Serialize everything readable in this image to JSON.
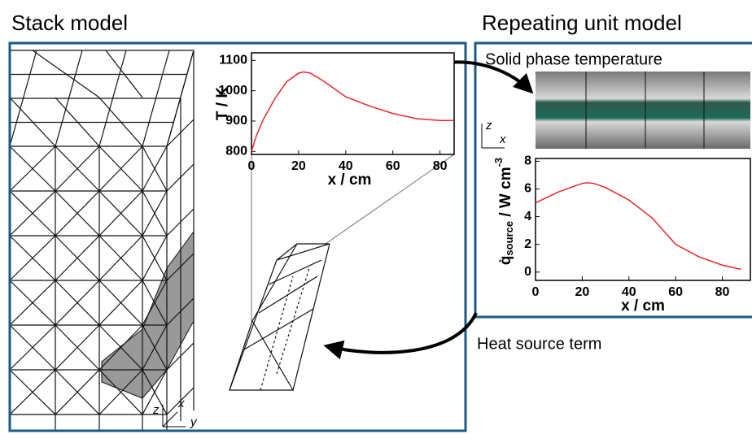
{
  "stack_title": "Stack model",
  "unit_title": "Repeating unit model",
  "solid_phase_label": "Solid phase temperature",
  "heat_source_label": "Heat source term",
  "stack_axes": {
    "z": "z",
    "x": "x",
    "y": "y"
  },
  "unit_axes": {
    "z": "z",
    "x": "x"
  },
  "chart_data": [
    {
      "type": "line",
      "xlabel": "x / cm",
      "ylabel": "T / K",
      "x": [
        0,
        2,
        5,
        10,
        15,
        20,
        22,
        25,
        30,
        40,
        50,
        60,
        70,
        80,
        86
      ],
      "values": [
        800,
        850,
        905,
        975,
        1030,
        1058,
        1062,
        1058,
        1035,
        980,
        950,
        925,
        908,
        902,
        902
      ],
      "color": "#e8262b",
      "xlim": [
        0,
        86
      ],
      "ylim": [
        790,
        1125
      ],
      "xticks": [
        0,
        20,
        40,
        60,
        80
      ],
      "yticks": [
        800,
        900,
        1000,
        1100
      ]
    },
    {
      "type": "line",
      "xlabel": "x / cm",
      "ylabel": {
        "symbol": "q̇",
        "subscript": "source",
        "unit": " / W cm",
        "superscript": "-3"
      },
      "x": [
        0,
        10,
        20,
        22,
        25,
        30,
        40,
        50,
        60,
        70,
        80,
        88
      ],
      "values": [
        5.0,
        5.8,
        6.4,
        6.45,
        6.4,
        6.1,
        5.2,
        3.9,
        2.0,
        1.1,
        0.5,
        0.2
      ],
      "color": "#e8262b",
      "xlim": [
        0,
        92
      ],
      "ylim": [
        -0.6,
        8.2
      ],
      "xticks": [
        0,
        20,
        40,
        60,
        80
      ],
      "yticks": [
        0,
        2,
        4,
        6,
        8
      ]
    }
  ]
}
